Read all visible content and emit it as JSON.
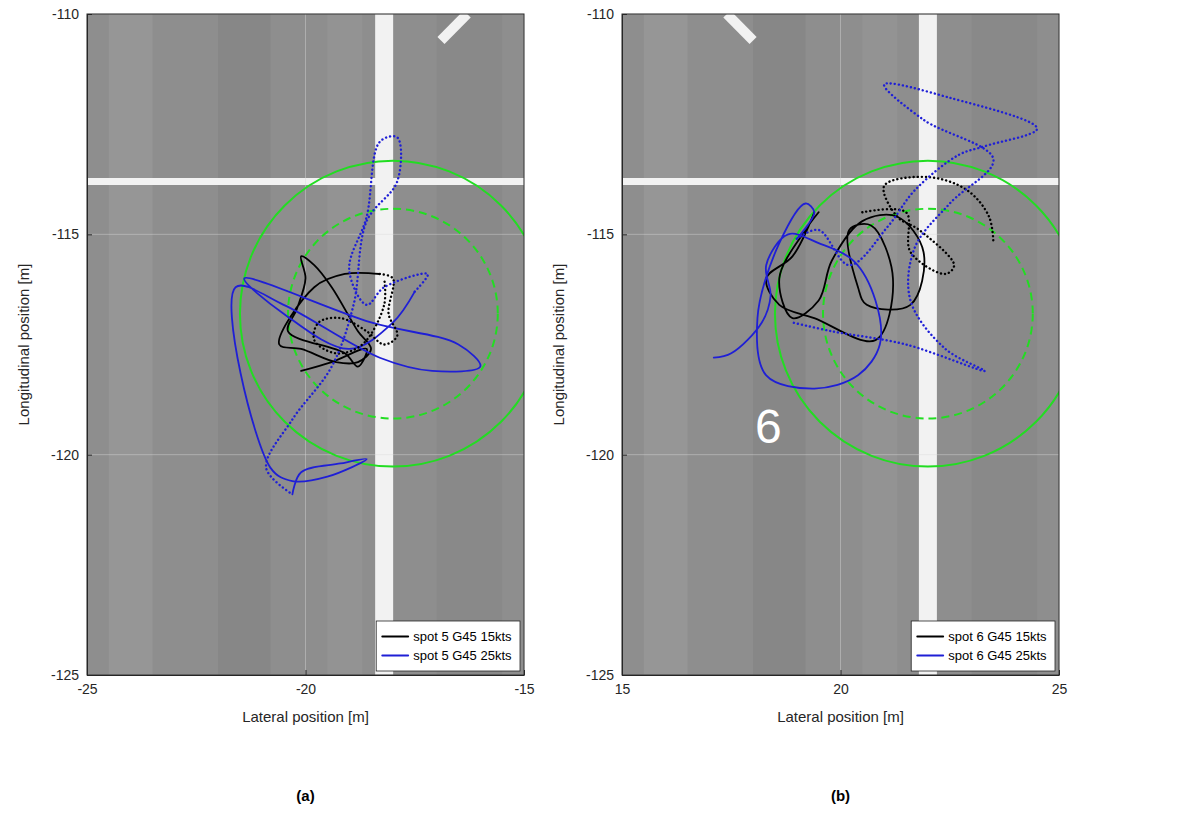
{
  "chart_data": [
    {
      "type": "line",
      "panel_label": "(a)",
      "x_label": "Lateral position [m]",
      "y_label": "Longitudinal position [m]",
      "xlim": [
        -25,
        -15
      ],
      "xticks": [
        -25,
        -20,
        -15
      ],
      "ylim": [
        -125,
        -110
      ],
      "yticks": [
        -125,
        -120,
        -115,
        -110
      ],
      "grid": true,
      "legend": "lower right",
      "markings": [
        {
          "kind": "stripe",
          "x1": -18.2,
          "y1": -125,
          "x2": -18.2,
          "y2": -110
        },
        {
          "kind": "thin",
          "x1": -25,
          "y1": -113.8,
          "x2": -15,
          "y2": -113.8
        },
        {
          "kind": "diagonal",
          "x1": -16.9,
          "y1": -110.6,
          "x2": -16.3,
          "y2": -110.0
        }
      ],
      "annotations": [],
      "circles": [
        {
          "cx": -18,
          "cy": -116.8,
          "r": 3.5,
          "color": "#22dd22",
          "line_style": "solid"
        },
        {
          "cx": -18,
          "cy": -116.8,
          "r": 2.4,
          "color": "#22dd22",
          "line_style": "dashed"
        }
      ],
      "series": [
        {
          "name": "spot 5 G45 15kts",
          "color": "#000000",
          "line_style": "solid",
          "x": [
            -20.1,
            -19.4,
            -18.6,
            -18.8,
            -19.1,
            -20.4,
            -20.2,
            -20.0,
            -20.1,
            -19.8,
            -19.4,
            -18.8,
            -18.5,
            -18.8,
            -19.3,
            -20.1,
            -20.6,
            -19.8,
            -19.1,
            -18.3
          ],
          "values": [
            -118.1,
            -117.9,
            -117.6,
            -118.0,
            -117.7,
            -117.2,
            -116.7,
            -116.0,
            -115.5,
            -115.7,
            -116.2,
            -117.2,
            -117.6,
            -117.9,
            -117.9,
            -117.6,
            -117.5,
            -116.2,
            -115.9,
            -115.9
          ]
        },
        {
          "name": "spot 5 G45 25kts",
          "color": "#1f1fd6",
          "line_style": "solid",
          "x": [
            -20.3,
            -20.1,
            -19.2,
            -18.6,
            -19.5,
            -20.3,
            -20.8,
            -21.6,
            -20.5,
            -18.3,
            -17.1,
            -16.0,
            -16.5,
            -18.5,
            -21.4,
            -20.5,
            -19.0,
            -18.0,
            -17.5
          ],
          "values": [
            -120.9,
            -120.4,
            -120.2,
            -120.1,
            -120.5,
            -120.6,
            -120.3,
            -116.2,
            -116.6,
            -117.8,
            -118.1,
            -118.0,
            -117.5,
            -117.0,
            -116.0,
            -116.8,
            -117.6,
            -117.0,
            -116.3
          ]
        },
        {
          "color": "#000000",
          "line_style": "dotted",
          "x": [
            -18.3,
            -18.0,
            -18.1,
            -17.9,
            -18.2,
            -18.6,
            -19.2,
            -19.7,
            -19.8,
            -19.3,
            -18.7,
            -18.2,
            -18.2
          ],
          "values": [
            -115.9,
            -116.0,
            -116.8,
            -117.3,
            -117.5,
            -117.2,
            -116.9,
            -117.0,
            -117.4,
            -117.7,
            -117.5,
            -116.6,
            -116.0
          ]
        },
        {
          "color": "#1f1fd6",
          "line_style": "dotted",
          "x": [
            -17.5,
            -17.2,
            -18.2,
            -18.6,
            -19.0,
            -18.6,
            -18.3,
            -17.9,
            -17.9,
            -18.6,
            -18.9,
            -19.4,
            -20.3,
            -20.9,
            -20.3
          ],
          "values": [
            -116.3,
            -115.9,
            -116.2,
            -116.6,
            -115.8,
            -114.6,
            -112.9,
            -112.8,
            -113.8,
            -114.7,
            -116.6,
            -118.0,
            -119.2,
            -120.3,
            -120.9
          ]
        }
      ]
    },
    {
      "type": "line",
      "panel_label": "(b)",
      "x_label": "Lateral position [m]",
      "y_label": "Longitudinal position [m]",
      "xlim": [
        15,
        25
      ],
      "xticks": [
        15,
        20,
        25
      ],
      "ylim": [
        -125,
        -110
      ],
      "yticks": [
        -125,
        -120,
        -115,
        -110
      ],
      "grid": true,
      "legend": "lower right",
      "markings": [
        {
          "kind": "stripe",
          "x1": 22,
          "y1": -125,
          "x2": 22,
          "y2": -110
        },
        {
          "kind": "thin",
          "x1": 15,
          "y1": -113.8,
          "x2": 25,
          "y2": -113.8
        },
        {
          "kind": "diagonal",
          "x1": 17.4,
          "y1": -110.0,
          "x2": 18.0,
          "y2": -110.6
        }
      ],
      "annotations": [
        {
          "text": "6",
          "x": 18.35,
          "y": -119.35,
          "color": "#ffffff"
        }
      ],
      "circles": [
        {
          "cx": 22,
          "cy": -116.8,
          "r": 3.5,
          "color": "#22dd22",
          "line_style": "solid"
        },
        {
          "cx": 22,
          "cy": -116.8,
          "r": 2.4,
          "color": "#22dd22",
          "line_style": "dashed"
        }
      ],
      "series": [
        {
          "name": "spot 6 G45 15kts",
          "color": "#000000",
          "line_style": "solid",
          "x": [
            19.4,
            18.9,
            18.3,
            18.6,
            19.4,
            20.8,
            21.2,
            20.7,
            20.2,
            20.4,
            20.6,
            21.6,
            21.9,
            21.3,
            20.5,
            19.8,
            19.5,
            18.9,
            18.6,
            19.2,
            19.5
          ],
          "values": [
            -114.5,
            -115.5,
            -116.0,
            -116.6,
            -116.9,
            -117.4,
            -116.0,
            -114.8,
            -114.9,
            -116.2,
            -116.6,
            -116.6,
            -115.4,
            -114.6,
            -114.7,
            -115.6,
            -116.5,
            -116.9,
            -116.0,
            -114.9,
            -114.5
          ]
        },
        {
          "name": "spot 6 G45 25kts",
          "color": "#1f1fd6",
          "line_style": "solid",
          "x": [
            17.1,
            17.5,
            18.2,
            18.4,
            18.3,
            18.8,
            19.5,
            20.3,
            20.8,
            20.9,
            20.4,
            19.4,
            18.3,
            18.1,
            18.6,
            19.2,
            19.4,
            19.0
          ],
          "values": [
            -117.8,
            -117.7,
            -117.0,
            -116.4,
            -115.7,
            -115.0,
            -115.2,
            -115.6,
            -116.5,
            -117.5,
            -118.2,
            -118.5,
            -118.2,
            -116.9,
            -115.2,
            -114.3,
            -114.5,
            -115.1
          ]
        },
        {
          "color": "#000000",
          "line_style": "dotted",
          "x": [
            20.5,
            21.5,
            21.6,
            22.4,
            22.6,
            21.8,
            21.3,
            21.0,
            22.0,
            22.9,
            23.4,
            23.5
          ],
          "values": [
            -114.5,
            -114.5,
            -115.4,
            -115.9,
            -115.7,
            -114.9,
            -114.6,
            -113.9,
            -113.7,
            -114.0,
            -114.6,
            -115.2
          ]
        },
        {
          "color": "#1f1fd6",
          "line_style": "dotted",
          "x": [
            19.0,
            19.5,
            20.2,
            21.1,
            21.7,
            22.7,
            23.3,
            24.5,
            22.5,
            21.0,
            21.9,
            23.5,
            22.5,
            21.7,
            21.6,
            22.4,
            23.3,
            21.5,
            19.8,
            18.9
          ],
          "values": [
            -115.1,
            -114.9,
            -115.7,
            -114.8,
            -114.0,
            -113.2,
            -113.0,
            -112.6,
            -111.9,
            -111.6,
            -112.4,
            -113.3,
            -114.3,
            -115.3,
            -116.5,
            -117.6,
            -118.1,
            -117.5,
            -117.2,
            -117.0
          ]
        }
      ]
    }
  ]
}
